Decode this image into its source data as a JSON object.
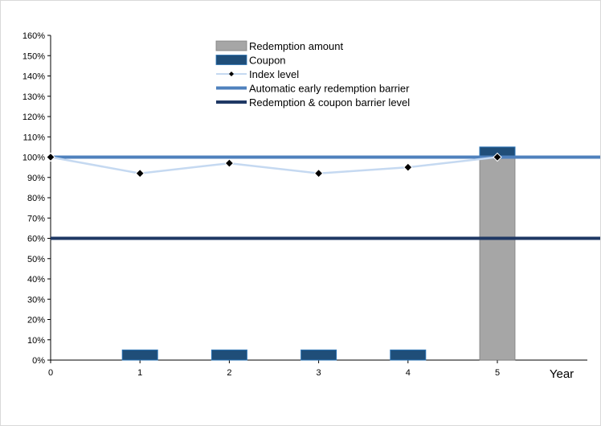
{
  "chart_data": {
    "type": "bar",
    "x": [
      0,
      1,
      2,
      3,
      4,
      5
    ],
    "xlabel": "Year",
    "ylabel": "",
    "ylim": [
      0,
      160
    ],
    "y_ticks": [
      0,
      10,
      20,
      30,
      40,
      50,
      60,
      70,
      80,
      90,
      100,
      110,
      120,
      130,
      140,
      150,
      160
    ],
    "y_tick_suffix": "%",
    "legend_position": "top-center",
    "series": [
      {
        "name": "Redemption amount",
        "kind": "bar",
        "color": "#a6a6a6",
        "points": [
          {
            "x": 5,
            "y": 100
          }
        ]
      },
      {
        "name": "Coupon",
        "kind": "bar",
        "color": "#1f4e79",
        "points": [
          {
            "x": 1,
            "y": 0,
            "height": 5
          },
          {
            "x": 2,
            "y": 0,
            "height": 5
          },
          {
            "x": 3,
            "y": 0,
            "height": 5
          },
          {
            "x": 4,
            "y": 0,
            "height": 5
          },
          {
            "x": 5,
            "y": 100,
            "height": 5
          }
        ]
      },
      {
        "name": "Index level",
        "kind": "line",
        "color": "#c5d9f1",
        "marker_color": "#000000",
        "points": [
          {
            "x": 0,
            "y": 100
          },
          {
            "x": 1,
            "y": 92
          },
          {
            "x": 2,
            "y": 97
          },
          {
            "x": 3,
            "y": 92
          },
          {
            "x": 4,
            "y": 95
          },
          {
            "x": 5,
            "y": 100
          }
        ]
      },
      {
        "name": "Automatic early redemption barrier",
        "kind": "hline",
        "color": "#4f81bd",
        "y": 100
      },
      {
        "name": "Redemption & coupon barrier level",
        "kind": "hline",
        "color": "#1f3864",
        "y": 60
      }
    ]
  }
}
